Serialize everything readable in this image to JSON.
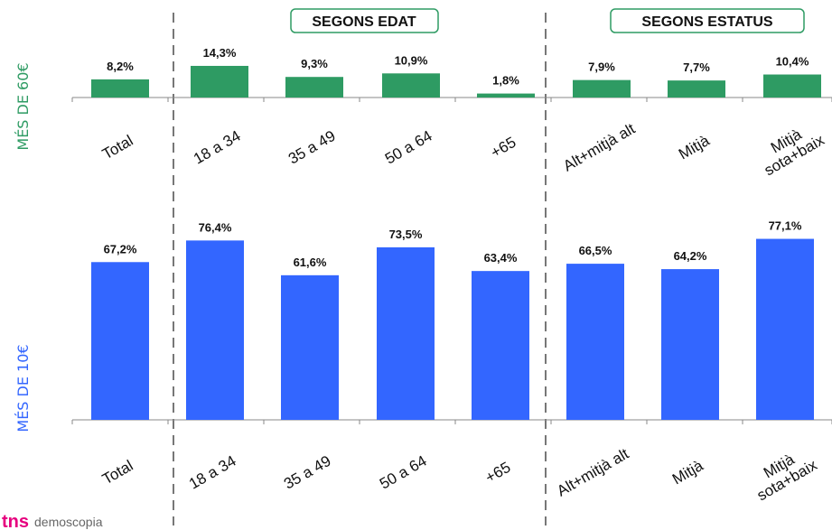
{
  "headers": {
    "age": "SEGONS EDAT",
    "status": "SEGONS ESTATUS"
  },
  "logo": {
    "mark": "tns",
    "text": "demoscopia",
    "color": "#e6007e"
  },
  "categories": [
    "Total",
    "18 a 34",
    "35 a 49",
    "50 a 64",
    "+65",
    "Alt+mitjà alt",
    "Mitjà",
    "Mitjà sota+baix"
  ],
  "chart_data": [
    {
      "type": "bar",
      "ylabel": "MÉS DE 60€",
      "color": "#2e9b63",
      "categories": [
        "Total",
        "18 a 34",
        "35 a 49",
        "50 a 64",
        "+65",
        "Alt+mitjà alt",
        "Mitjà",
        "Mitjà sota+baix"
      ],
      "values": [
        8.2,
        14.3,
        9.3,
        10.9,
        1.8,
        7.9,
        7.7,
        10.4
      ],
      "labels": [
        "8,2%",
        "14,3%",
        "9,3%",
        "10,9%",
        "1,8%",
        "7,9%",
        "7,7%",
        "10,4%"
      ]
    },
    {
      "type": "bar",
      "ylabel": "MÉS DE 10€",
      "color": "#3366ff",
      "categories": [
        "Total",
        "18 a 34",
        "35 a 49",
        "50 a 64",
        "+65",
        "Alt+mitjà alt",
        "Mitjà",
        "Mitjà sota+baix"
      ],
      "values": [
        67.2,
        76.4,
        61.6,
        73.5,
        63.4,
        66.5,
        64.2,
        77.1
      ],
      "labels": [
        "67,2%",
        "76,4%",
        "61,6%",
        "73,5%",
        "63,4%",
        "66,5%",
        "64,2%",
        "77,1%"
      ]
    }
  ]
}
